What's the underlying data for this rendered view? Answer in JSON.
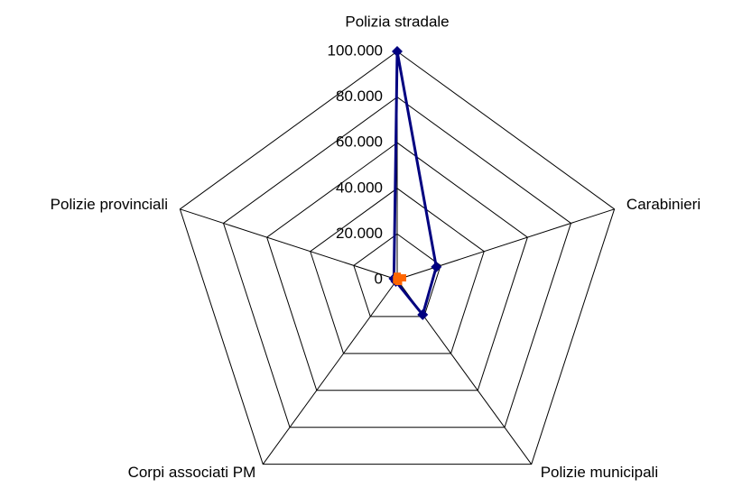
{
  "chart_data": {
    "type": "radar",
    "categories": [
      "Polizia stradale",
      "Carabinieri",
      "Polizie municipali",
      "Corpi associati PM",
      "Polizie provinciali"
    ],
    "series": [
      {
        "color": "#000080",
        "values": [
          100000,
          18000,
          19000,
          1000,
          1500
        ]
      },
      {
        "color": "#ff6600",
        "values": [
          1500,
          2500,
          1000,
          300,
          300
        ]
      }
    ],
    "ylim": [
      0,
      100000
    ],
    "yticks": [
      0,
      {
        "value": 20000,
        "label": "20.000"
      },
      {
        "value": 40000,
        "label": "40.000"
      },
      {
        "value": 60000,
        "label": "60.000"
      },
      {
        "value": 80000,
        "label": "80.000"
      },
      {
        "value": 100000,
        "label": "100.000"
      }
    ],
    "grid": true
  }
}
